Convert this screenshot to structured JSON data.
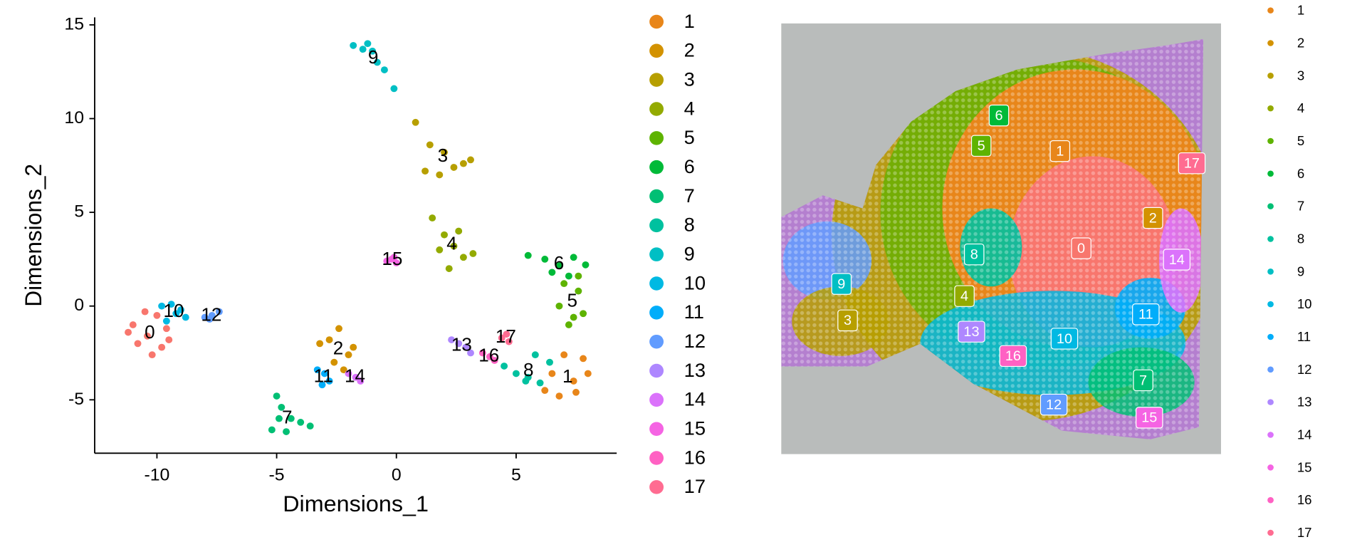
{
  "chart_data": [
    {
      "type": "scatter",
      "xlabel": "Dimensions_1",
      "ylabel": "Dimensions_2",
      "xlim": [
        -12.6,
        9.2
      ],
      "ylim": [
        -7.85,
        15.4
      ],
      "xticks": [
        -10,
        -5,
        0,
        5
      ],
      "yticks": [
        -5,
        0,
        5,
        10,
        15
      ],
      "grid": false,
      "series": [
        {
          "name": "0",
          "color": "#F8766D",
          "x": [
            -11,
            -10.5,
            -10,
            -9.6,
            -10.8,
            -10.2,
            -9.8,
            -10.4,
            -11.2,
            -9.5
          ],
          "y": [
            -1,
            -0.3,
            -0.5,
            -1.2,
            -2,
            -2.6,
            -2.2,
            -1.6,
            -1.4,
            -1.8
          ]
        },
        {
          "name": "1",
          "color": "#E8861A",
          "x": [
            6.2,
            6.8,
            7.4,
            8,
            7.8,
            6.5,
            7,
            7.5
          ],
          "y": [
            -4.5,
            -4.8,
            -4,
            -3.6,
            -2.8,
            -3.6,
            -2.6,
            -4.6
          ]
        },
        {
          "name": "2",
          "color": "#D39200",
          "x": [
            -2.8,
            -2.4,
            -2,
            -2.6,
            -2.2,
            -3.2,
            -1.8
          ],
          "y": [
            -1.8,
            -1.2,
            -2.6,
            -3,
            -3.4,
            -2,
            -2.2
          ]
        },
        {
          "name": "3",
          "color": "#B79F00",
          "x": [
            0.8,
            1.4,
            2,
            2.8,
            3.1,
            1.2,
            1.8,
            2.4
          ],
          "y": [
            9.8,
            8.6,
            8.2,
            7.6,
            7.8,
            7.2,
            7,
            7.4
          ]
        },
        {
          "name": "4",
          "color": "#93AA00",
          "x": [
            1.5,
            2,
            2.4,
            2.8,
            3.2,
            2.2,
            2.6,
            1.8
          ],
          "y": [
            4.7,
            3.8,
            3.2,
            2.6,
            2.8,
            2,
            4,
            3
          ]
        },
        {
          "name": "5",
          "color": "#5EB300",
          "x": [
            7,
            7.6,
            7.8,
            7.2,
            6.8,
            7.4,
            7.6
          ],
          "y": [
            1.2,
            0.8,
            -0.4,
            -1,
            0,
            -0.6,
            1.6
          ]
        },
        {
          "name": "6",
          "color": "#00BA38",
          "x": [
            5.5,
            6.2,
            6.8,
            7.4,
            7.9,
            6.5,
            7.2
          ],
          "y": [
            2.7,
            2.5,
            2.2,
            2.6,
            2.2,
            1.8,
            1.6
          ]
        },
        {
          "name": "7",
          "color": "#00BF74",
          "x": [
            -5,
            -4.8,
            -4.4,
            -4,
            -3.6,
            -5.2,
            -4.6,
            -4.9
          ],
          "y": [
            -4.8,
            -5.4,
            -6,
            -6.2,
            -6.4,
            -6.6,
            -6.7,
            -6
          ]
        },
        {
          "name": "8",
          "color": "#00C19F",
          "x": [
            4.5,
            5,
            5.5,
            6,
            6.4,
            5.8,
            5.4
          ],
          "y": [
            -3.2,
            -3.6,
            -3.8,
            -4.1,
            -3,
            -2.6,
            -4
          ]
        },
        {
          "name": "9",
          "color": "#00BFC4",
          "x": [
            -1.8,
            -1.4,
            -1,
            -0.8,
            -0.5,
            -0.1,
            -1.2
          ],
          "y": [
            13.9,
            13.7,
            13.6,
            13,
            12.6,
            11.6,
            14
          ]
        },
        {
          "name": "10",
          "color": "#00B9E3",
          "x": [
            -9.8,
            -9.4,
            -9,
            -8.8,
            -9.6,
            -9.2
          ],
          "y": [
            0,
            0.1,
            -0.2,
            -0.6,
            -0.8,
            -0.4
          ]
        },
        {
          "name": "11",
          "color": "#00ADFA",
          "x": [
            -3.3,
            -3,
            -2.8,
            -3.1
          ],
          "y": [
            -3.4,
            -3.6,
            -4,
            -4.2
          ]
        },
        {
          "name": "12",
          "color": "#619CFF",
          "x": [
            -8,
            -7.7,
            -7.4,
            -7.8
          ],
          "y": [
            -0.6,
            -0.5,
            -0.3,
            -0.7
          ]
        },
        {
          "name": "13",
          "color": "#AE87FF",
          "x": [
            2.3,
            2.6,
            2.9,
            3.1
          ],
          "y": [
            -1.8,
            -2,
            -2.2,
            -2.5
          ]
        },
        {
          "name": "14",
          "color": "#DB72FB",
          "x": [
            -2,
            -1.7,
            -1.5
          ],
          "y": [
            -3.6,
            -3.8,
            -4
          ]
        },
        {
          "name": "15",
          "color": "#F564E3",
          "x": [
            -0.4,
            -0.2,
            0,
            -0.1
          ],
          "y": [
            2.4,
            2.5,
            2.3,
            2.6
          ]
        },
        {
          "name": "16",
          "color": "#FF61C3",
          "x": [
            3.6,
            3.9,
            4.1
          ],
          "y": [
            -2.5,
            -2.7,
            -2.9
          ]
        },
        {
          "name": "17",
          "color": "#FF6C91",
          "x": [
            4.4,
            4.6,
            4.7
          ],
          "y": [
            -1.7,
            -1.5,
            -1.9
          ]
        }
      ]
    },
    {
      "type": "spatial",
      "series": [
        {
          "name": "0",
          "color": "#F8766D",
          "x": 339,
          "y": 259
        },
        {
          "name": "1",
          "color": "#E8861A",
          "x": 315,
          "y": 147
        },
        {
          "name": "2",
          "color": "#D39200",
          "x": 420,
          "y": 224
        },
        {
          "name": "3",
          "color": "#B79F00",
          "x": 75,
          "y": 342
        },
        {
          "name": "4",
          "color": "#93AA00",
          "x": 207,
          "y": 314
        },
        {
          "name": "5",
          "color": "#5EB300",
          "x": 226,
          "y": 141
        },
        {
          "name": "6",
          "color": "#00BA38",
          "x": 246,
          "y": 106
        },
        {
          "name": "7",
          "color": "#00BF74",
          "x": 409,
          "y": 411
        },
        {
          "name": "8",
          "color": "#00C19F",
          "x": 218,
          "y": 266
        },
        {
          "name": "9",
          "color": "#00BFC4",
          "x": 68,
          "y": 300
        },
        {
          "name": "10",
          "color": "#00B9E3",
          "x": 320,
          "y": 363
        },
        {
          "name": "11",
          "color": "#00ADFA",
          "x": 412,
          "y": 335
        },
        {
          "name": "12",
          "color": "#619CFF",
          "x": 308,
          "y": 439
        },
        {
          "name": "13",
          "color": "#AE87FF",
          "x": 215,
          "y": 355
        },
        {
          "name": "14",
          "color": "#DB72FB",
          "x": 447,
          "y": 272
        },
        {
          "name": "15",
          "color": "#F564E3",
          "x": 416,
          "y": 454
        },
        {
          "name": "16",
          "color": "#FF61C3",
          "x": 262,
          "y": 383
        },
        {
          "name": "17",
          "color": "#FF6C91",
          "x": 464,
          "y": 161
        }
      ]
    }
  ]
}
